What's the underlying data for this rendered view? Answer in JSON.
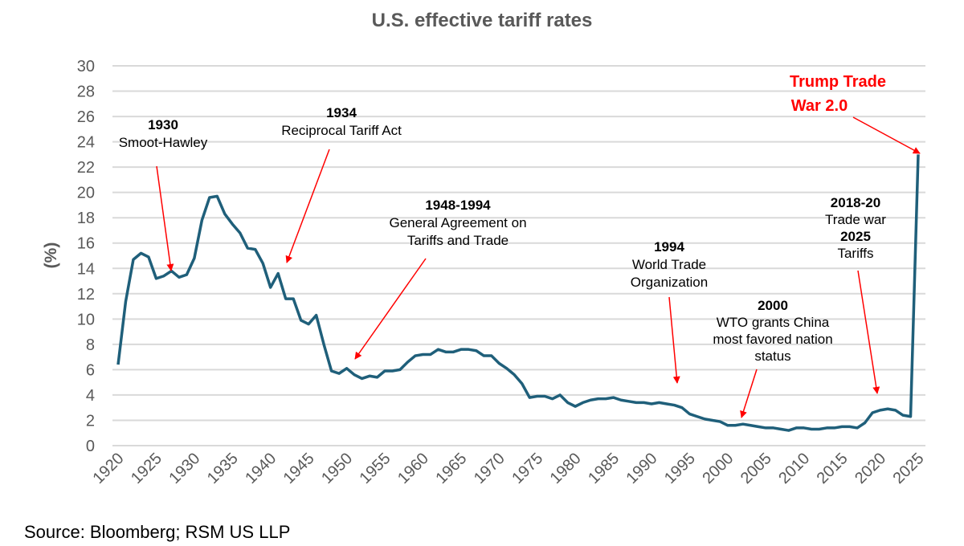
{
  "chart_data": {
    "type": "line",
    "title": "U.S. effective tariff rates",
    "ylabel": "(%)",
    "xlabel": "",
    "xlim": [
      1920,
      2025
    ],
    "ylim": [
      0,
      30
    ],
    "grid": true,
    "y_ticks": [
      "0",
      "2",
      "4",
      "6",
      "8",
      "10",
      "12",
      "14",
      "16",
      "18",
      "20",
      "22",
      "24",
      "26",
      "28",
      "30"
    ],
    "x_ticks": [
      "1920",
      "1925",
      "1930",
      "1935",
      "1940",
      "1945",
      "1950",
      "1955",
      "1960",
      "1965",
      "1970",
      "1975",
      "1980",
      "1985",
      "1990",
      "1995",
      "2000",
      "2005",
      "2010",
      "2015",
      "2020",
      "2025"
    ],
    "line_color": "#1f5f7a",
    "x_start": 1920,
    "values": [
      6.4,
      11.4,
      14.7,
      15.2,
      14.9,
      13.2,
      13.4,
      13.8,
      13.3,
      13.5,
      14.8,
      17.8,
      19.6,
      19.7,
      18.3,
      17.5,
      16.8,
      15.6,
      15.5,
      14.4,
      12.5,
      13.6,
      11.6,
      11.6,
      9.9,
      9.6,
      10.3,
      8.0,
      5.9,
      5.7,
      6.1,
      5.6,
      5.3,
      5.5,
      5.4,
      5.9,
      5.9,
      6.0,
      6.6,
      7.1,
      7.2,
      7.2,
      7.6,
      7.4,
      7.4,
      7.6,
      7.6,
      7.5,
      7.1,
      7.1,
      6.5,
      6.1,
      5.6,
      4.9,
      3.8,
      3.9,
      3.9,
      3.7,
      4.0,
      3.4,
      3.1,
      3.4,
      3.6,
      3.7,
      3.7,
      3.8,
      3.6,
      3.5,
      3.4,
      3.4,
      3.3,
      3.4,
      3.3,
      3.2,
      3.0,
      2.5,
      2.3,
      2.1,
      2.0,
      1.9,
      1.6,
      1.6,
      1.7,
      1.6,
      1.5,
      1.4,
      1.4,
      1.3,
      1.2,
      1.4,
      1.4,
      1.3,
      1.3,
      1.4,
      1.4,
      1.5,
      1.5,
      1.4,
      1.8,
      2.6,
      2.8,
      2.9,
      2.8,
      2.4,
      2.3,
      23.0
    ],
    "annotations": [
      {
        "lines": [
          "1930",
          "Smoot-Hawley"
        ],
        "bold": [
          true,
          false
        ]
      },
      {
        "lines": [
          "1934",
          "Reciprocal Tariff Act"
        ],
        "bold": [
          true,
          false
        ]
      },
      {
        "lines": [
          "1948-1994",
          "General Agreement on",
          "Tariffs and Trade"
        ],
        "bold": [
          true,
          false,
          false
        ]
      },
      {
        "lines": [
          "1994",
          "World Trade",
          "Organization"
        ],
        "bold": [
          true,
          false,
          false
        ]
      },
      {
        "lines": [
          "2000",
          "WTO grants China",
          "most favored nation",
          "status"
        ],
        "bold": [
          true,
          false,
          false,
          false
        ]
      },
      {
        "lines": [
          "2018-20",
          "Trade war",
          "2025",
          "Tariffs"
        ],
        "bold": [
          true,
          false,
          true,
          false
        ]
      },
      {
        "lines": [
          "Trump Trade",
          "War 2.0"
        ],
        "bold": [
          true,
          true
        ],
        "color": "#ff0000"
      }
    ],
    "arrow_color": "#ff0000"
  },
  "source": "Source: Bloomberg; RSM US LLP"
}
